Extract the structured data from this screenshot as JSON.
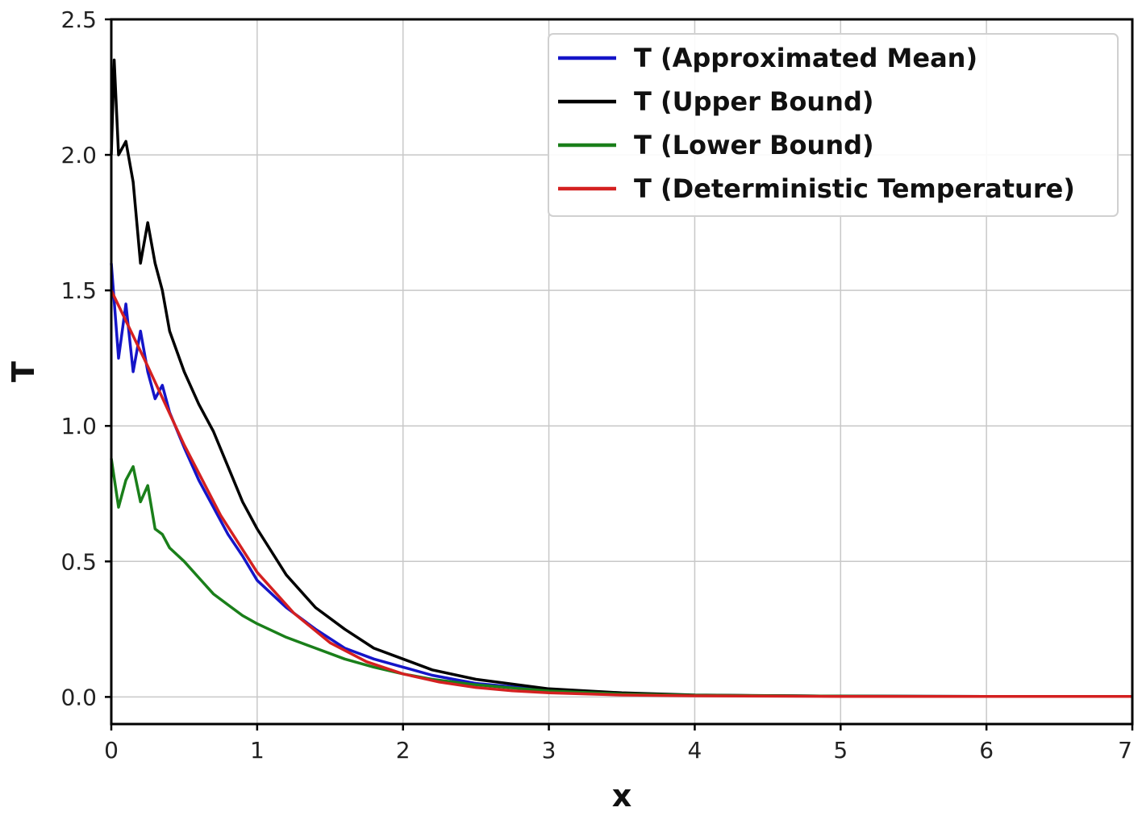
{
  "chart_data": {
    "type": "line",
    "xlabel": "x",
    "ylabel": "T",
    "xlim": [
      0,
      7
    ],
    "ylim": [
      -0.1,
      2.5
    ],
    "x_ticks": [
      "0",
      "1",
      "2",
      "3",
      "4",
      "5",
      "6",
      "7"
    ],
    "y_ticks": [
      "0.0",
      "0.5",
      "1.0",
      "1.5",
      "2.0",
      "2.5"
    ],
    "grid": true,
    "legend_position": "top-right",
    "series": [
      {
        "name": "T (Approximated Mean)",
        "color": "#1515c8",
        "x": [
          0,
          0.05,
          0.1,
          0.15,
          0.2,
          0.25,
          0.3,
          0.35,
          0.4,
          0.5,
          0.6,
          0.7,
          0.8,
          0.9,
          1.0,
          1.2,
          1.4,
          1.6,
          1.8,
          2.0,
          2.2,
          2.5,
          3.0,
          3.5,
          4.0,
          5.0,
          6.0,
          7.0
        ],
        "y": [
          1.6,
          1.25,
          1.45,
          1.2,
          1.35,
          1.2,
          1.1,
          1.15,
          1.05,
          0.92,
          0.8,
          0.7,
          0.6,
          0.52,
          0.43,
          0.33,
          0.25,
          0.18,
          0.14,
          0.11,
          0.08,
          0.05,
          0.025,
          0.012,
          0.006,
          0.003,
          0.002,
          0.002
        ]
      },
      {
        "name": "T (Upper Bound)",
        "color": "#000000",
        "x": [
          0,
          0.02,
          0.05,
          0.1,
          0.15,
          0.2,
          0.25,
          0.3,
          0.35,
          0.4,
          0.5,
          0.6,
          0.7,
          0.8,
          0.9,
          1.0,
          1.2,
          1.4,
          1.6,
          1.8,
          2.0,
          2.2,
          2.5,
          3.0,
          3.5,
          4.0,
          5.0,
          6.0,
          7.0
        ],
        "y": [
          2.0,
          2.35,
          2.0,
          2.05,
          1.9,
          1.6,
          1.75,
          1.6,
          1.5,
          1.35,
          1.2,
          1.08,
          0.98,
          0.85,
          0.72,
          0.62,
          0.45,
          0.33,
          0.25,
          0.18,
          0.14,
          0.1,
          0.065,
          0.03,
          0.015,
          0.007,
          0.003,
          0.002,
          0.002
        ]
      },
      {
        "name": "T (Lower Bound)",
        "color": "#1a7f1a",
        "x": [
          0,
          0.05,
          0.1,
          0.15,
          0.2,
          0.25,
          0.3,
          0.35,
          0.4,
          0.5,
          0.6,
          0.7,
          0.8,
          0.9,
          1.0,
          1.2,
          1.4,
          1.6,
          1.8,
          2.0,
          2.2,
          2.5,
          3.0,
          3.5,
          4.0,
          5.0,
          6.0,
          7.0
        ],
        "y": [
          0.88,
          0.7,
          0.8,
          0.85,
          0.72,
          0.78,
          0.62,
          0.6,
          0.55,
          0.5,
          0.44,
          0.38,
          0.34,
          0.3,
          0.27,
          0.22,
          0.18,
          0.14,
          0.11,
          0.085,
          0.065,
          0.045,
          0.022,
          0.011,
          0.006,
          0.003,
          0.002,
          0.002
        ]
      },
      {
        "name": "T (Deterministic Temperature)",
        "color": "#d42020",
        "x": [
          0,
          0.25,
          0.5,
          0.75,
          1.0,
          1.25,
          1.5,
          1.75,
          2.0,
          2.25,
          2.5,
          2.75,
          3.0,
          3.5,
          4.0,
          4.5,
          5.0,
          6.0,
          7.0
        ],
        "y": [
          1.5,
          1.22,
          0.93,
          0.67,
          0.46,
          0.31,
          0.2,
          0.13,
          0.085,
          0.055,
          0.035,
          0.023,
          0.015,
          0.007,
          0.004,
          0.003,
          0.002,
          0.002,
          0.002
        ]
      }
    ]
  }
}
